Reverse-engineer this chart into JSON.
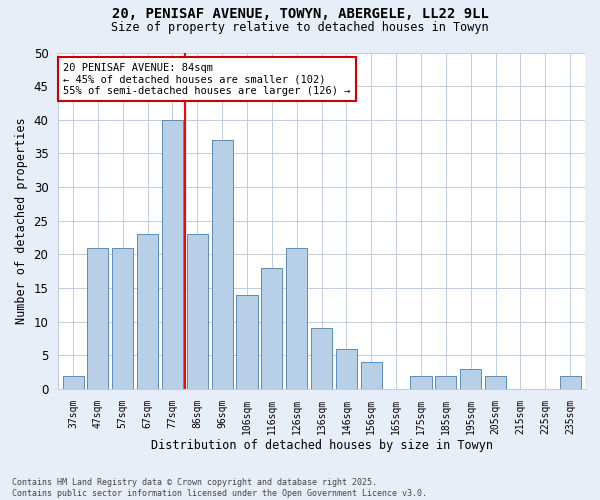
{
  "title_line1": "20, PENISAF AVENUE, TOWYN, ABERGELE, LL22 9LL",
  "title_line2": "Size of property relative to detached houses in Towyn",
  "xlabel": "Distribution of detached houses by size in Towyn",
  "ylabel": "Number of detached properties",
  "categories": [
    "37sqm",
    "47sqm",
    "57sqm",
    "67sqm",
    "77sqm",
    "86sqm",
    "96sqm",
    "106sqm",
    "116sqm",
    "126sqm",
    "136sqm",
    "146sqm",
    "156sqm",
    "165sqm",
    "175sqm",
    "185sqm",
    "195sqm",
    "205sqm",
    "215sqm",
    "225sqm",
    "235sqm"
  ],
  "values": [
    2,
    21,
    21,
    23,
    40,
    23,
    37,
    14,
    18,
    21,
    9,
    6,
    4,
    0,
    2,
    2,
    3,
    2,
    0,
    0,
    2
  ],
  "bar_color": "#b8cfe8",
  "bar_edge_color": "#5b8db8",
  "annotation_title": "20 PENISAF AVENUE: 84sqm",
  "annotation_line1": "← 45% of detached houses are smaller (102)",
  "annotation_line2": "55% of semi-detached houses are larger (126) →",
  "annotation_box_color": "#ffffff",
  "annotation_box_edge": "#cc0000",
  "footer_line1": "Contains HM Land Registry data © Crown copyright and database right 2025.",
  "footer_line2": "Contains public sector information licensed under the Open Government Licence v3.0.",
  "background_color": "#e8eef8",
  "plot_bg_color": "#ffffff",
  "ylim": [
    0,
    50
  ],
  "yticks": [
    0,
    5,
    10,
    15,
    20,
    25,
    30,
    35,
    40,
    45,
    50
  ],
  "red_line_index": 5
}
